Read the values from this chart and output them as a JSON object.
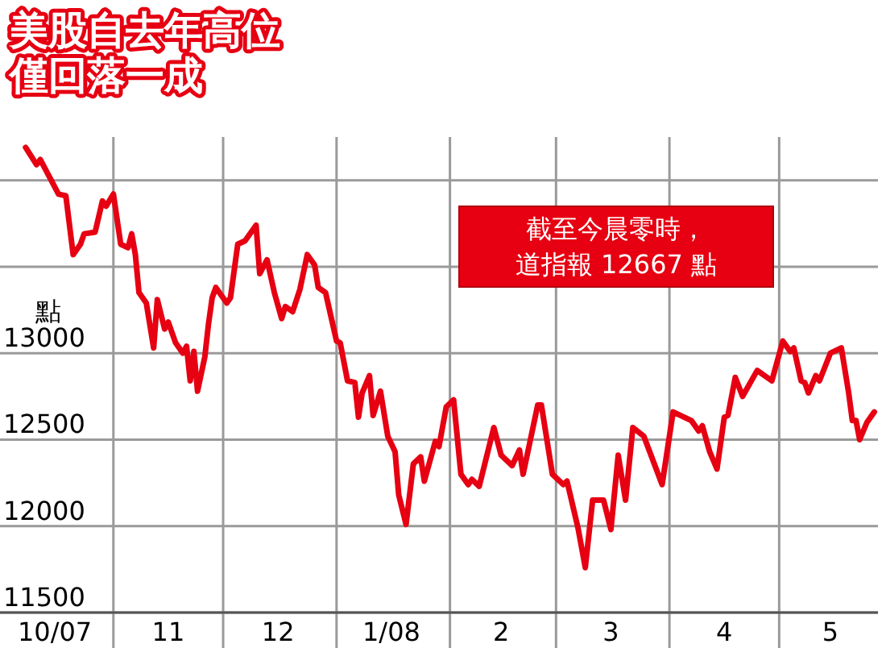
{
  "chart_data": {
    "type": "line",
    "title": "美股自去年高位僅回落一成",
    "ylabel": "點",
    "annotations": [
      "截至今晨零時，道指報 12667 點"
    ],
    "x": [
      "2007-10-08",
      "2007-10-11",
      "2007-10-12",
      "2007-10-15",
      "2007-10-17",
      "2007-10-19",
      "2007-10-21",
      "2007-10-23",
      "2007-10-24",
      "2007-10-27",
      "2007-10-29",
      "2007-10-30",
      "2007-11-01",
      "2007-11-03",
      "2007-11-05",
      "2007-11-06",
      "2007-11-07",
      "2007-11-08",
      "2007-11-10",
      "2007-11-12",
      "2007-11-13",
      "2007-11-15",
      "2007-11-16",
      "2007-11-18",
      "2007-11-20",
      "2007-11-21",
      "2007-11-22",
      "2007-11-23",
      "2007-11-24",
      "2007-11-26",
      "2007-11-27",
      "2007-11-28",
      "2007-11-29",
      "2007-12-02",
      "2007-12-03",
      "2007-12-05",
      "2007-12-07",
      "2007-12-08",
      "2007-12-10",
      "2007-12-11",
      "2007-12-13",
      "2007-12-15",
      "2007-12-17",
      "2007-12-18",
      "2007-12-20",
      "2007-12-22",
      "2007-12-24",
      "2007-12-26",
      "2007-12-27",
      "2007-12-29",
      "2008-01-01",
      "2008-01-02",
      "2008-01-04",
      "2008-01-06",
      "2008-01-07",
      "2008-01-08",
      "2008-01-10",
      "2008-01-11",
      "2008-01-13",
      "2008-01-15",
      "2008-01-17",
      "2008-01-18",
      "2008-01-20",
      "2008-01-22",
      "2008-01-24",
      "2008-01-25",
      "2008-01-28",
      "2008-01-29",
      "2008-01-31",
      "2008-02-02",
      "2008-02-04",
      "2008-02-06",
      "2008-02-07",
      "2008-02-09",
      "2008-02-13",
      "2008-02-15",
      "2008-02-18",
      "2008-02-20",
      "2008-02-21",
      "2008-02-25",
      "2008-02-26",
      "2008-02-29",
      "2008-03-03",
      "2008-03-04",
      "2008-03-07",
      "2008-03-09",
      "2008-03-11",
      "2008-03-14",
      "2008-03-16",
      "2008-03-18",
      "2008-03-20",
      "2008-03-22",
      "2008-03-25",
      "2008-03-30",
      "2008-04-02",
      "2008-04-07",
      "2008-04-09",
      "2008-04-10",
      "2008-04-12",
      "2008-04-14",
      "2008-04-16",
      "2008-04-17",
      "2008-04-19",
      "2008-04-21",
      "2008-04-25",
      "2008-04-29",
      "2008-05-02",
      "2008-05-04",
      "2008-05-05",
      "2008-05-07",
      "2008-05-08",
      "2008-05-09",
      "2008-05-11",
      "2008-05-12",
      "2008-05-15",
      "2008-05-18",
      "2008-05-20",
      "2008-05-21",
      "2008-05-22",
      "2008-05-23",
      "2008-05-25",
      "2008-05-27"
    ],
    "series": [
      {
        "color": "#e60012",
        "values": [
          14190,
          14090,
          14120,
          14000,
          13920,
          13910,
          13570,
          13630,
          13690,
          13700,
          13880,
          13850,
          13920,
          13630,
          13610,
          13690,
          13570,
          13350,
          13290,
          13030,
          13310,
          13140,
          13180,
          13060,
          13000,
          13040,
          12840,
          13010,
          12780,
          12980,
          13170,
          13320,
          13380,
          13290,
          13320,
          13630,
          13650,
          13680,
          13740,
          13460,
          13540,
          13350,
          13200,
          13270,
          13240,
          13370,
          13570,
          13510,
          13380,
          13350,
          13070,
          13060,
          12840,
          12830,
          12630,
          12770,
          12870,
          12640,
          12780,
          12520,
          12430,
          12180,
          12010,
          12360,
          12400,
          12260,
          12490,
          12460,
          12690,
          12730,
          12300,
          12240,
          12270,
          12230,
          12570,
          12410,
          12350,
          12440,
          12300,
          12700,
          12700,
          12300,
          12240,
          12260,
          11990,
          11760,
          12150,
          12150,
          11980,
          12410,
          12150,
          12570,
          12520,
          12240,
          12660,
          12610,
          12550,
          12580,
          12430,
          12330,
          12630,
          12640,
          12860,
          12750,
          12900,
          12840,
          13070,
          13010,
          13030,
          12840,
          12830,
          12770,
          12870,
          12840,
          13000,
          13030,
          12770,
          12610,
          12610,
          12500,
          12600,
          12660
        ]
      }
    ],
    "xlim": [
      "2007-10-01",
      "2008-05-28"
    ],
    "xticks": [
      {
        "value": "2007-10-16",
        "label": "10/07"
      },
      {
        "value": "2007-11-01",
        "label": null
      },
      {
        "value": "2007-11-16",
        "label": "11"
      },
      {
        "value": "2007-12-01",
        "label": null
      },
      {
        "value": "2007-12-16",
        "label": "12"
      },
      {
        "value": "2008-01-01",
        "label": null
      },
      {
        "value": "2008-01-16",
        "label": "1/08"
      },
      {
        "value": "2008-02-01",
        "label": null
      },
      {
        "value": "2008-02-15",
        "label": "2"
      },
      {
        "value": "2008-03-01",
        "label": null
      },
      {
        "value": "2008-03-16",
        "label": "3"
      },
      {
        "value": "2008-04-01",
        "label": null
      },
      {
        "value": "2008-04-16",
        "label": "4"
      },
      {
        "value": "2008-05-01",
        "label": null
      },
      {
        "value": "2008-05-15",
        "label": "5"
      }
    ],
    "ylim": [
      11500,
      14250
    ],
    "yticks": [
      11500,
      12000,
      12500,
      13000,
      {
        "value": 13500,
        "label": null
      },
      {
        "value": 14000,
        "label": null
      }
    ],
    "grid": true,
    "marker": "none",
    "line_style": "solid"
  }
}
